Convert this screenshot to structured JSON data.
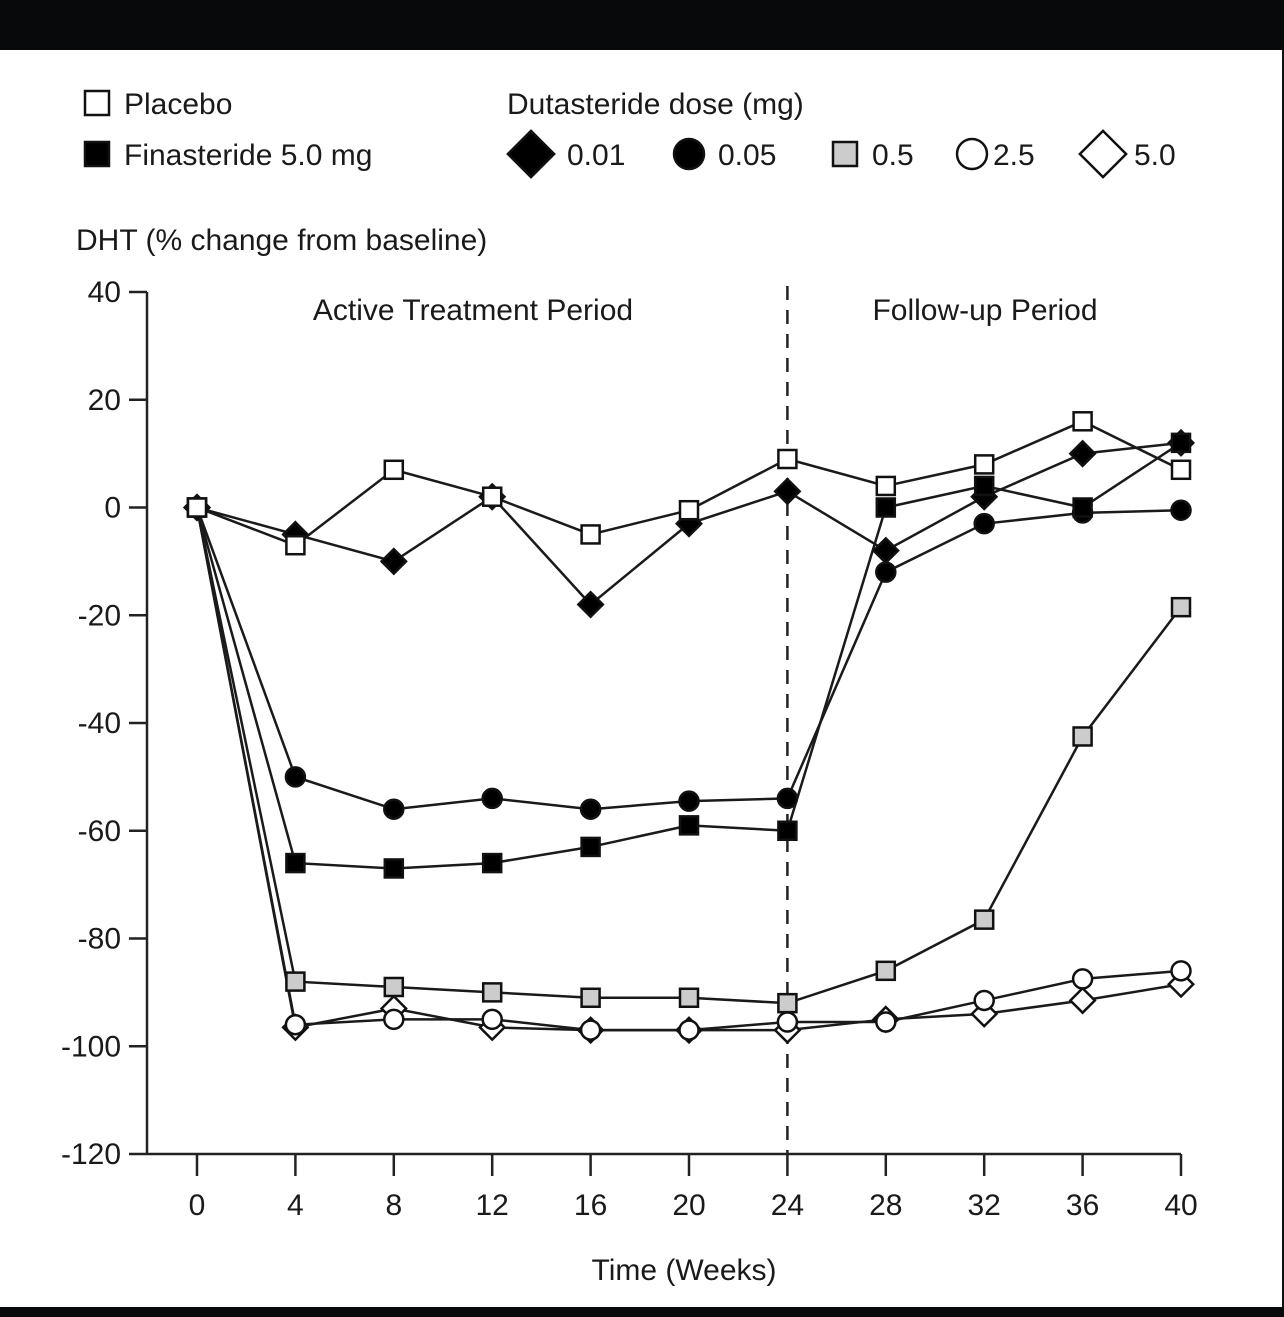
{
  "chart_data": {
    "type": "line",
    "title": "",
    "xlabel": "Time (Weeks)",
    "ylabel": "DHT (% change from baseline)",
    "xlim": [
      0,
      40
    ],
    "ylim": [
      -120,
      40
    ],
    "x_ticks": [
      0,
      4,
      8,
      12,
      16,
      20,
      24,
      28,
      32,
      36,
      40
    ],
    "y_ticks": [
      40,
      20,
      0,
      -20,
      -40,
      -60,
      -80,
      -100,
      -120
    ],
    "grid": false,
    "legend_group_title": "Dutasteride dose (mg)",
    "annotations": [
      {
        "text": "Active Treatment Period",
        "x": 11.5
      },
      {
        "text": "Follow-up Period",
        "x": 32
      }
    ],
    "divider": {
      "x": 24,
      "style": "dashed"
    },
    "x": [
      0,
      4,
      8,
      12,
      16,
      20,
      24,
      28,
      32,
      36,
      40
    ],
    "series": [
      {
        "name": "Placebo",
        "marker": "square",
        "fill": "#ffffff",
        "values": [
          0,
          -7,
          7,
          2,
          -5,
          -0.5,
          9,
          4,
          8,
          16,
          7
        ]
      },
      {
        "name": "Finasteride 5.0 mg",
        "marker": "square",
        "fill": "#000000",
        "values": [
          0,
          -66,
          -67,
          -66,
          -63,
          -59,
          -60,
          0,
          4,
          0,
          12
        ]
      },
      {
        "name": "0.01",
        "marker": "diamond",
        "fill": "#000000",
        "values": [
          0,
          -5,
          -10,
          2,
          -18,
          -3,
          3,
          -8,
          2,
          10,
          12
        ]
      },
      {
        "name": "0.05",
        "marker": "circle",
        "fill": "#000000",
        "values": [
          0,
          -50,
          -56,
          -54,
          -56,
          -54.5,
          -54,
          -12,
          -3,
          -1,
          -0.5
        ]
      },
      {
        "name": "0.5",
        "marker": "square",
        "fill": "#cccccc",
        "values": [
          0,
          -88,
          -89,
          -90,
          -91,
          -91,
          -92,
          -86,
          -76.5,
          -42.5,
          -18.5
        ]
      },
      {
        "name": "2.5",
        "marker": "circle",
        "fill": "#ffffff",
        "values": [
          0,
          -96,
          -95,
          -95,
          -97,
          -97,
          -95.5,
          -95.5,
          -91.5,
          -87.5,
          -86
        ]
      },
      {
        "name": "5.0",
        "marker": "diamond",
        "fill": "#ffffff",
        "values": [
          0,
          -96.5,
          -93,
          -96.5,
          -97,
          -97,
          -97,
          -95,
          -94,
          -91.5,
          -88.5
        ]
      }
    ]
  },
  "legend": {
    "left": [
      {
        "label": "Placebo",
        "series": 0
      },
      {
        "label": "Finasteride 5.0 mg",
        "series": 1
      }
    ],
    "group_title": "Dutasteride dose (mg)",
    "right": [
      {
        "label": "0.01",
        "series": 2
      },
      {
        "label": "0.05",
        "series": 3
      },
      {
        "label": "0.5",
        "series": 4
      },
      {
        "label": "2.5",
        "series": 5
      },
      {
        "label": "5.0",
        "series": 6
      }
    ]
  }
}
